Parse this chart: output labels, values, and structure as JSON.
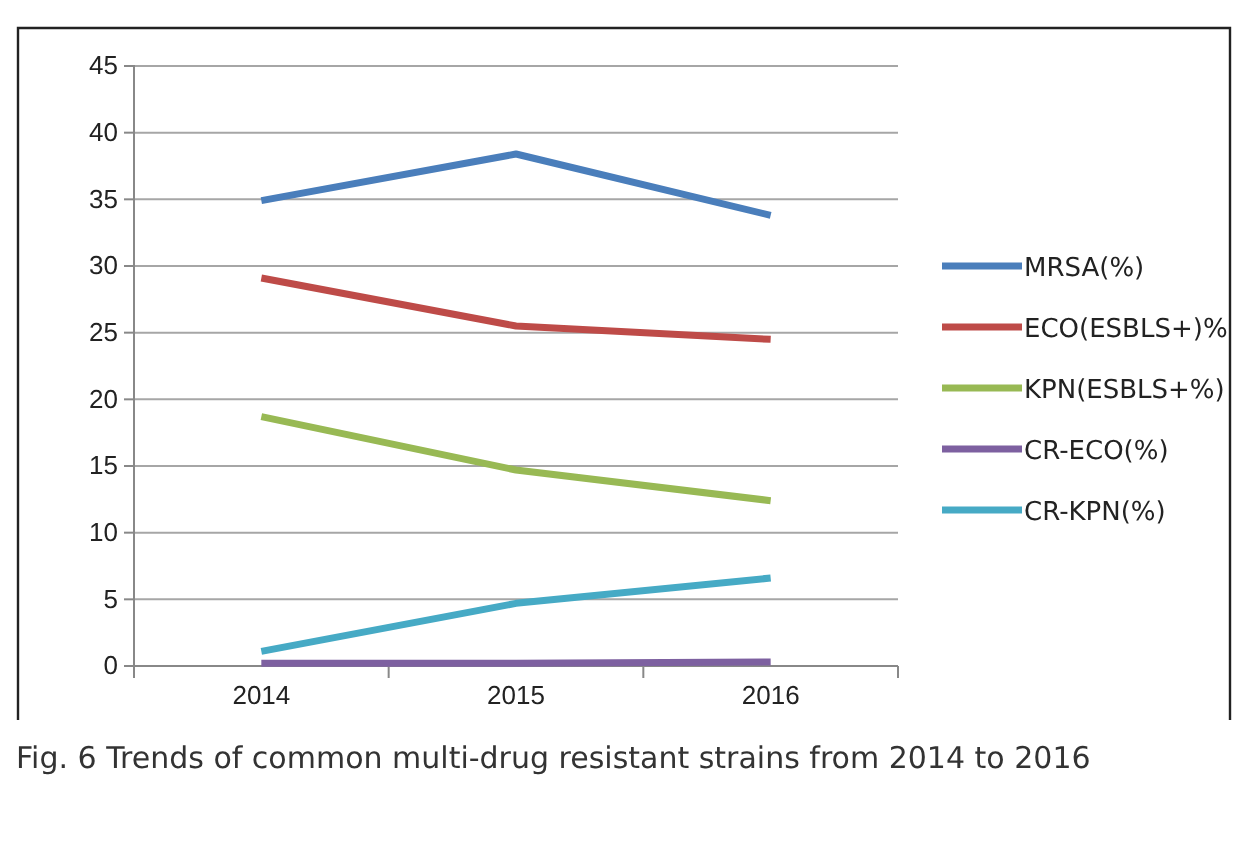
{
  "chart_data": {
    "type": "line",
    "title": "Fig. 6 Trends of common multi-drug resistant strains from 2014 to 2016",
    "categories": [
      "2014",
      "2015",
      "2016"
    ],
    "series": [
      {
        "name": "MRSA(%)",
        "color": "#4a7ebb",
        "values": [
          34.9,
          38.4,
          33.8
        ]
      },
      {
        "name": "ECO(ESBLS+)%",
        "color": "#be4b48",
        "values": [
          29.1,
          25.5,
          24.5
        ]
      },
      {
        "name": "KPN(ESBLS+%)",
        "color": "#98b954",
        "values": [
          18.7,
          14.7,
          12.4
        ]
      },
      {
        "name": "CR-ECO(%)",
        "color": "#7d60a0",
        "values": [
          0.2,
          0.2,
          0.3
        ]
      },
      {
        "name": "CR-KPN(%)",
        "color": "#46aac5",
        "values": [
          1.1,
          4.7,
          6.6
        ]
      }
    ],
    "ylim": [
      0,
      45
    ],
    "yticks": [
      0,
      5,
      10,
      15,
      20,
      25,
      30,
      35,
      40,
      45
    ],
    "grid": "y",
    "legend": "right",
    "marker": "none",
    "line_style": "solid"
  }
}
